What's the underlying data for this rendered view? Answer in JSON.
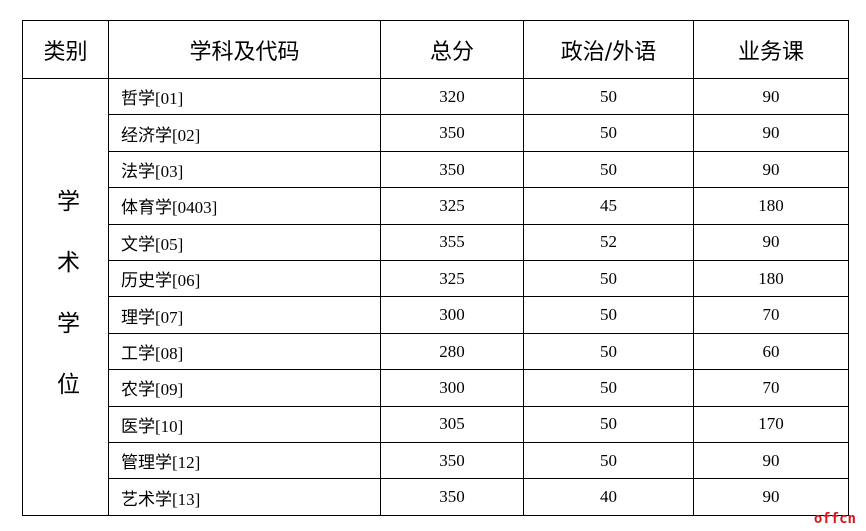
{
  "table": {
    "header": [
      "类别",
      "学科及代码",
      "总分",
      "政治/外语",
      "业务课"
    ],
    "category": "学术学位",
    "rows": [
      [
        "哲学[01]",
        320,
        50,
        90
      ],
      [
        "经济学[02]",
        350,
        50,
        90
      ],
      [
        "法学[03]",
        350,
        50,
        90
      ],
      [
        "体育学[0403]",
        325,
        45,
        180
      ],
      [
        "文学[05]",
        355,
        52,
        90
      ],
      [
        "历史学[06]",
        325,
        50,
        180
      ],
      [
        "理学[07]",
        300,
        50,
        70
      ],
      [
        "工学[08]",
        280,
        50,
        60
      ],
      [
        "农学[09]",
        300,
        50,
        70
      ],
      [
        "医学[10]",
        305,
        50,
        170
      ],
      [
        "管理学[12]",
        350,
        50,
        90
      ],
      [
        "艺术学[13]",
        350,
        40,
        90
      ]
    ]
  },
  "watermark": "offcn"
}
